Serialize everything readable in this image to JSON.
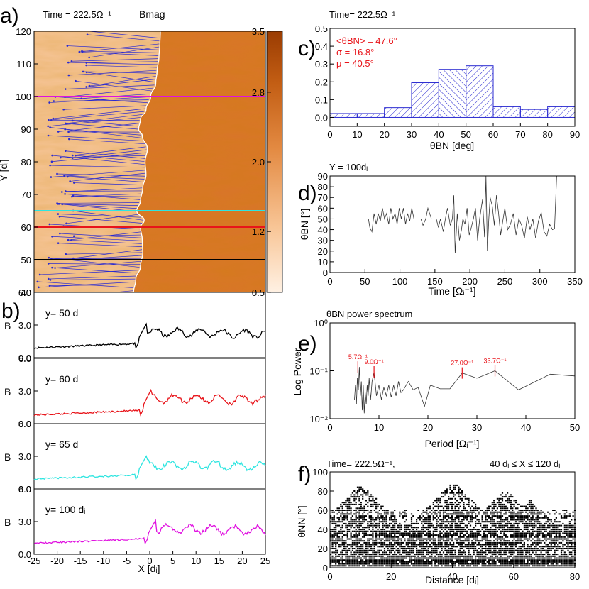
{
  "figure_labels": [
    "a)",
    "b)",
    "c)",
    "d)",
    "e)",
    "f)"
  ],
  "colors": {
    "black": "#000000",
    "red": "#e8141a",
    "cyan": "#2ee5e0",
    "magenta": "#e010e0",
    "blue": "#2a2ad0",
    "orange_dark": "#b24a06",
    "orange_light": "#fde3cc",
    "shade": "#f7c69b"
  },
  "chart_data": [
    {
      "panel": "a",
      "type": "heatmap",
      "title_left": "Time = 222.5Ω⁻¹",
      "title_right": "Bmag",
      "xlabel": "",
      "ylabel": "Y [dᵢ]",
      "xlim": [
        -25,
        25
      ],
      "ylim": [
        40,
        120
      ],
      "yticks": [
        "40",
        "50",
        "60",
        "70",
        "80",
        "90",
        "100",
        "110",
        "120"
      ],
      "colorbar": {
        "range": [
          0.5,
          3.5
        ],
        "ticks": [
          "0.5",
          "1.2",
          "2.0",
          "2.8",
          "3.5"
        ]
      },
      "cut_lines": [
        {
          "y": 100,
          "color": "magenta"
        },
        {
          "y": 65,
          "color": "cyan"
        },
        {
          "y": 60,
          "color": "red"
        },
        {
          "y": 50,
          "color": "black"
        }
      ],
      "shock_front_x_vs_y": [
        [
          40,
          -3.5
        ],
        [
          44,
          -3.0
        ],
        [
          48,
          -2.0
        ],
        [
          52,
          -1.5
        ],
        [
          56,
          -1.6
        ],
        [
          60,
          -2.0
        ],
        [
          62,
          -1.2
        ],
        [
          65,
          -2.8
        ],
        [
          68,
          -2.0
        ],
        [
          72,
          -1.5
        ],
        [
          76,
          -0.8
        ],
        [
          80,
          -1.0
        ],
        [
          84,
          -0.5
        ],
        [
          88,
          -1.6
        ],
        [
          90,
          -2.4
        ],
        [
          93,
          -2.0
        ],
        [
          96,
          -0.8
        ],
        [
          100,
          0.2
        ],
        [
          104,
          1.3
        ],
        [
          108,
          1.6
        ],
        [
          112,
          2.0
        ],
        [
          116,
          2.2
        ],
        [
          120,
          2.3
        ]
      ]
    },
    {
      "panel": "b",
      "type": "line",
      "xlabel": "X [dᵢ]",
      "ylabel": "B",
      "xlim": [
        -25,
        25
      ],
      "xticks": [
        "-25",
        "-20",
        "-15",
        "-10",
        "-5",
        "0",
        "5",
        "10",
        "15",
        "20",
        "25"
      ],
      "ylim": [
        0,
        6
      ],
      "yticks": [
        "0.0",
        "3.0",
        "6.0"
      ],
      "series": [
        {
          "name": "y=  50 dᵢ",
          "color": "black",
          "upstream": 0.9,
          "downstream": 2.3,
          "jump_x": -2
        },
        {
          "name": "y=  60 dᵢ",
          "color": "red",
          "upstream": 0.8,
          "downstream": 2.3,
          "jump_x": -1
        },
        {
          "name": "y=  65 dᵢ",
          "color": "cyan",
          "upstream": 0.9,
          "downstream": 2.2,
          "jump_x": -2
        },
        {
          "name": "y= 100 dᵢ",
          "color": "magenta",
          "upstream": 1.0,
          "downstream": 2.3,
          "jump_x": 0
        }
      ]
    },
    {
      "panel": "c",
      "type": "bar",
      "title": "Time=  222.5Ω⁻¹",
      "xlabel": "θBN [deg]",
      "ylabel": "",
      "xlim": [
        0,
        90
      ],
      "ylim": [
        -0.05,
        0.5
      ],
      "xticks": [
        "0",
        "10",
        "20",
        "30",
        "40",
        "50",
        "60",
        "70",
        "80",
        "90"
      ],
      "yticks": [
        "0.0",
        "0.1",
        "0.2",
        "0.3",
        "0.4",
        "0.5"
      ],
      "bin_edges": [
        0,
        10,
        20,
        30,
        40,
        50,
        60,
        70,
        80,
        90
      ],
      "values": [
        0.01,
        0.01,
        0.055,
        0.195,
        0.27,
        0.29,
        0.06,
        0.045,
        0.06
      ],
      "annotations": [
        "<θBN> =  47.6°",
        "σ =  16.8°",
        "μ =  40.5°"
      ]
    },
    {
      "panel": "d",
      "type": "line",
      "title": "Y = 100dᵢ",
      "xlabel": "Time [Ωᵢ⁻¹]",
      "ylabel": "θBN [°]",
      "xlim": [
        0,
        350
      ],
      "ylim": [
        0,
        90
      ],
      "xticks": [
        "0",
        "50",
        "100",
        "150",
        "200",
        "250",
        "300",
        "350"
      ],
      "yticks": [
        "0",
        "10",
        "20",
        "30",
        "40",
        "50",
        "60",
        "70",
        "80",
        "90"
      ],
      "x": [
        55,
        57,
        60,
        63,
        66,
        69,
        72,
        75,
        78,
        81,
        84,
        87,
        90,
        93,
        96,
        99,
        102,
        105,
        108,
        111,
        114,
        117,
        120,
        125,
        130,
        133,
        137,
        140,
        145,
        148,
        152,
        155,
        158,
        162,
        165,
        168,
        172,
        175,
        177,
        179,
        182,
        185,
        188,
        190,
        193,
        196,
        199,
        202,
        205,
        208,
        211,
        214,
        218,
        221,
        223,
        225,
        227,
        229,
        232,
        235,
        238,
        241,
        244,
        247,
        250,
        254,
        258,
        262,
        266,
        270,
        274,
        278,
        282,
        286,
        290,
        294,
        298,
        302,
        306,
        310,
        314,
        318,
        321,
        324
      ],
      "y": [
        50,
        42,
        38,
        55,
        45,
        55,
        48,
        60,
        50,
        55,
        45,
        60,
        50,
        55,
        45,
        60,
        50,
        60,
        45,
        55,
        48,
        60,
        50,
        50,
        50,
        44,
        50,
        60,
        50,
        50,
        50,
        42,
        50,
        38,
        50,
        60,
        44,
        50,
        72,
        18,
        55,
        30,
        40,
        50,
        45,
        60,
        35,
        42,
        50,
        60,
        30,
        50,
        68,
        33,
        90,
        20,
        50,
        70,
        62,
        44,
        72,
        55,
        35,
        48,
        60,
        40,
        45,
        55,
        35,
        50,
        44,
        32,
        52,
        40,
        50,
        32,
        48,
        56,
        38,
        34,
        45,
        40,
        41,
        90
      ]
    },
    {
      "panel": "e",
      "type": "line",
      "title": "θBN power spectrum",
      "xlabel": "Period [Ωᵢ⁻¹]",
      "ylabel": "Log Power",
      "xlim": [
        0,
        50
      ],
      "ylog": [
        0.01,
        1
      ],
      "xticks": [
        "0",
        "10",
        "20",
        "30",
        "40",
        "50"
      ],
      "yticks": [
        "10⁻²",
        "10⁻¹",
        "10⁰"
      ],
      "x": [
        5.0,
        5.2,
        5.4,
        5.6,
        5.8,
        6.0,
        6.2,
        6.4,
        6.6,
        6.8,
        7.0,
        7.2,
        7.4,
        7.6,
        7.8,
        8.0,
        8.3,
        8.6,
        9.0,
        9.5,
        10.0,
        10.5,
        11.0,
        11.5,
        12.0,
        12.5,
        13.0,
        13.5,
        14.0,
        14.5,
        15.0,
        16.0,
        17.0,
        18.0,
        19.3,
        20.5,
        22.5,
        24.5,
        27.0,
        30.0,
        33.7,
        38.5,
        45.0,
        50.0
      ],
      "y": [
        0.025,
        0.05,
        0.02,
        0.07,
        0.04,
        0.12,
        0.03,
        0.06,
        0.015,
        0.05,
        0.013,
        0.035,
        0.02,
        0.05,
        0.03,
        0.07,
        0.025,
        0.06,
        0.095,
        0.03,
        0.05,
        0.025,
        0.045,
        0.03,
        0.05,
        0.028,
        0.05,
        0.03,
        0.06,
        0.035,
        0.04,
        0.06,
        0.04,
        0.045,
        0.018,
        0.05,
        0.042,
        0.042,
        0.09,
        0.07,
        0.1,
        0.04,
        0.085,
        0.078
      ],
      "peaks": [
        {
          "x": 5.7,
          "y": 0.12,
          "label": "5.7Ω⁻¹"
        },
        {
          "x": 9.0,
          "y": 0.095,
          "label": "9.0Ω⁻¹"
        },
        {
          "x": 27.0,
          "y": 0.09,
          "label": "27.0Ω⁻¹"
        },
        {
          "x": 33.7,
          "y": 0.1,
          "label": "33.7Ω⁻¹"
        }
      ]
    },
    {
      "panel": "f",
      "type": "scatter",
      "title_left": "Time=  222.5Ω⁻¹,",
      "title_right": "40 dᵢ ≤ X ≤ 120 dᵢ",
      "xlabel": "Distance [dᵢ]",
      "ylabel": "θNN [°]",
      "xlim": [
        0,
        80
      ],
      "ylim": [
        0,
        100
      ],
      "xticks": [
        "0",
        "20",
        "40",
        "60",
        "80"
      ],
      "yticks": [
        "0",
        "20",
        "40",
        "60",
        "80",
        "100"
      ],
      "clusters": [
        {
          "center": 10,
          "peak": 88
        },
        {
          "center": 40,
          "peak": 90
        },
        {
          "center": 57,
          "peak": 82
        },
        {
          "center": 65,
          "peak": 72
        }
      ],
      "dense_band_top": 44
    }
  ]
}
